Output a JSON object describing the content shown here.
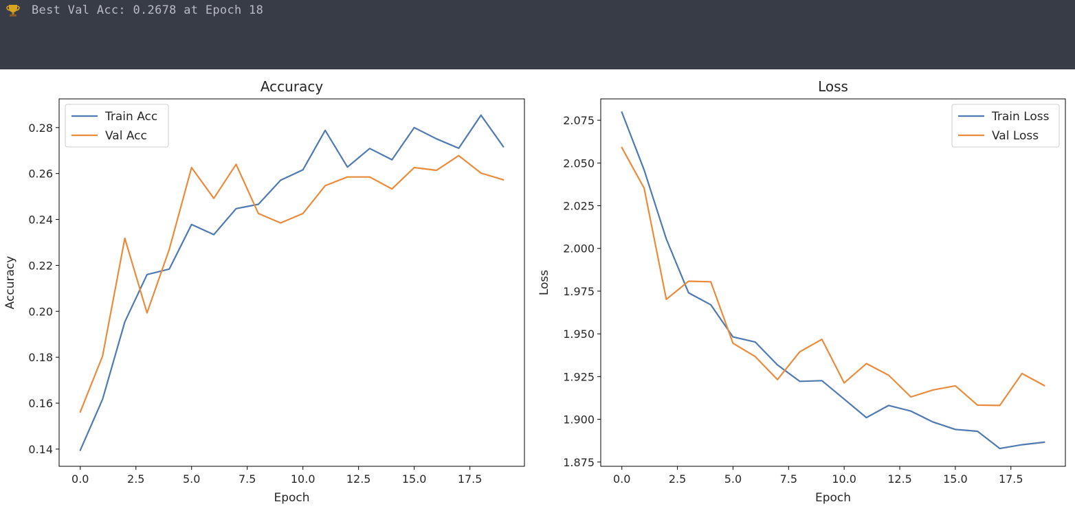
{
  "console": {
    "icon": "trophy-icon",
    "text": "Best Val Acc: 0.2678 at Epoch 18"
  },
  "colors": {
    "console_bg": "#383c47",
    "console_text": "#b9bcc4",
    "train": "#4e79b1",
    "val": "#ea8b3c"
  },
  "chart_data": [
    {
      "type": "line",
      "title": "Accuracy",
      "xlabel": "Epoch",
      "ylabel": "Accuracy",
      "x": [
        0,
        1,
        2,
        3,
        4,
        5,
        6,
        7,
        8,
        9,
        10,
        11,
        12,
        13,
        14,
        15,
        16,
        17,
        18,
        19
      ],
      "xlim": [
        -0.95,
        19.95
      ],
      "ylim": [
        0.1325,
        0.2925
      ],
      "xticks": [
        0.0,
        2.5,
        5.0,
        7.5,
        10.0,
        12.5,
        15.0,
        17.5
      ],
      "xtick_labels": [
        "0.0",
        "2.5",
        "5.0",
        "7.5",
        "10.0",
        "12.5",
        "15.0",
        "17.5"
      ],
      "yticks": [
        0.14,
        0.16,
        0.18,
        0.2,
        0.22,
        0.24,
        0.26,
        0.28
      ],
      "ytick_labels": [
        "0.14",
        "0.16",
        "0.18",
        "0.20",
        "0.22",
        "0.24",
        "0.26",
        "0.28"
      ],
      "legend_position": "top-left",
      "grid": false,
      "series": [
        {
          "name": "Train Acc",
          "color": "#4e79b1",
          "values": [
            0.1395,
            0.1617,
            0.1954,
            0.216,
            0.2184,
            0.2378,
            0.2334,
            0.2447,
            0.2466,
            0.2571,
            0.2616,
            0.2788,
            0.2628,
            0.2709,
            0.266,
            0.28,
            0.2751,
            0.271,
            0.2854,
            0.2717
          ]
        },
        {
          "name": "Val Acc",
          "color": "#ea8b3c",
          "values": [
            0.1562,
            0.1805,
            0.2318,
            0.1993,
            0.227,
            0.2626,
            0.2492,
            0.264,
            0.2426,
            0.2385,
            0.2426,
            0.2547,
            0.2585,
            0.2585,
            0.2533,
            0.2626,
            0.2614,
            0.2678,
            0.2602,
            0.2573
          ]
        }
      ]
    },
    {
      "type": "line",
      "title": "Loss",
      "xlabel": "Epoch",
      "ylabel": "Loss",
      "x": [
        0,
        1,
        2,
        3,
        4,
        5,
        6,
        7,
        8,
        9,
        10,
        11,
        12,
        13,
        14,
        15,
        16,
        17,
        18,
        19
      ],
      "xlim": [
        -0.95,
        19.95
      ],
      "ylim": [
        1.8725,
        2.0875
      ],
      "xticks": [
        0.0,
        2.5,
        5.0,
        7.5,
        10.0,
        12.5,
        15.0,
        17.5
      ],
      "xtick_labels": [
        "0.0",
        "2.5",
        "5.0",
        "7.5",
        "10.0",
        "12.5",
        "15.0",
        "17.5"
      ],
      "yticks": [
        1.875,
        1.9,
        1.925,
        1.95,
        1.975,
        2.0,
        2.025,
        2.05,
        2.075
      ],
      "ytick_labels": [
        "1.875",
        "1.900",
        "1.925",
        "1.950",
        "1.975",
        "2.000",
        "2.025",
        "2.050",
        "2.075"
      ],
      "legend_position": "top-right",
      "grid": false,
      "series": [
        {
          "name": "Train Loss",
          "color": "#4e79b1",
          "values": [
            2.0797,
            2.046,
            2.0055,
            1.974,
            1.967,
            1.9482,
            1.9452,
            1.9318,
            1.9222,
            1.9226,
            1.9118,
            1.901,
            1.9081,
            1.9048,
            1.8984,
            1.8941,
            1.893,
            1.8829,
            1.8851,
            1.8866
          ]
        },
        {
          "name": "Val Loss",
          "color": "#ea8b3c",
          "values": [
            2.059,
            2.0353,
            1.9702,
            1.9808,
            1.9805,
            1.9445,
            1.9367,
            1.9232,
            1.9395,
            1.9468,
            1.9213,
            1.9326,
            1.9258,
            1.9131,
            1.9172,
            1.9196,
            1.9083,
            1.9081,
            1.9268,
            1.9197
          ]
        }
      ]
    }
  ]
}
